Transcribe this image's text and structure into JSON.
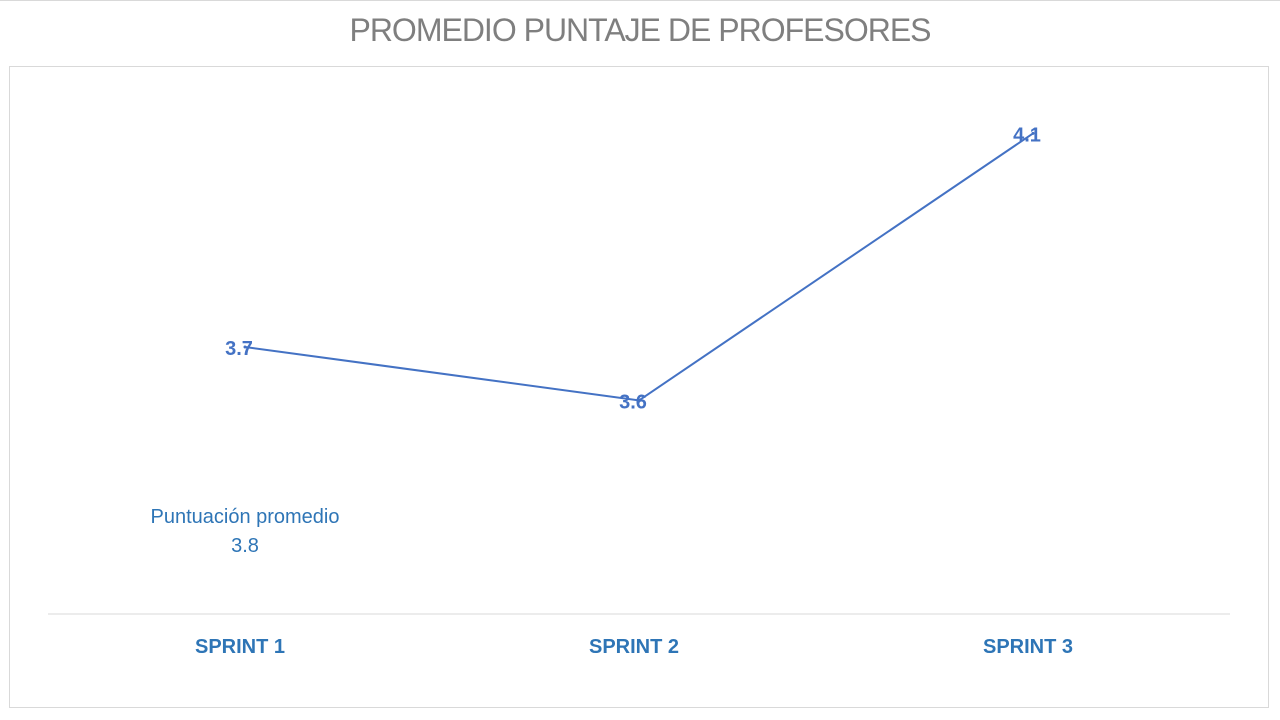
{
  "title": "PROMEDIO PUNTAJE DE PROFESORES",
  "chart_data": {
    "type": "line",
    "title": "PROMEDIO PUNTAJE DE PROFESORES",
    "categories": [
      "SPRINT 1",
      "SPRINT 2",
      "SPRINT 3"
    ],
    "series": [
      {
        "values": [
          3.7,
          3.6,
          4.1
        ],
        "color": "#4472c4"
      }
    ],
    "data_labels": [
      "3.7",
      "3.6",
      "4.1"
    ],
    "ylim": [
      3.2,
      4.2
    ],
    "grid": false,
    "legend": "none",
    "annotation": {
      "label": "Puntuación promedio",
      "value": "3.8"
    },
    "colors": {
      "line": "#4472c4",
      "data_label": "#4472c4",
      "category_label": "#2e75b6",
      "annotation": "#2e75b6",
      "title": "#7f7f7f",
      "axis": "#d9d9d9"
    }
  }
}
